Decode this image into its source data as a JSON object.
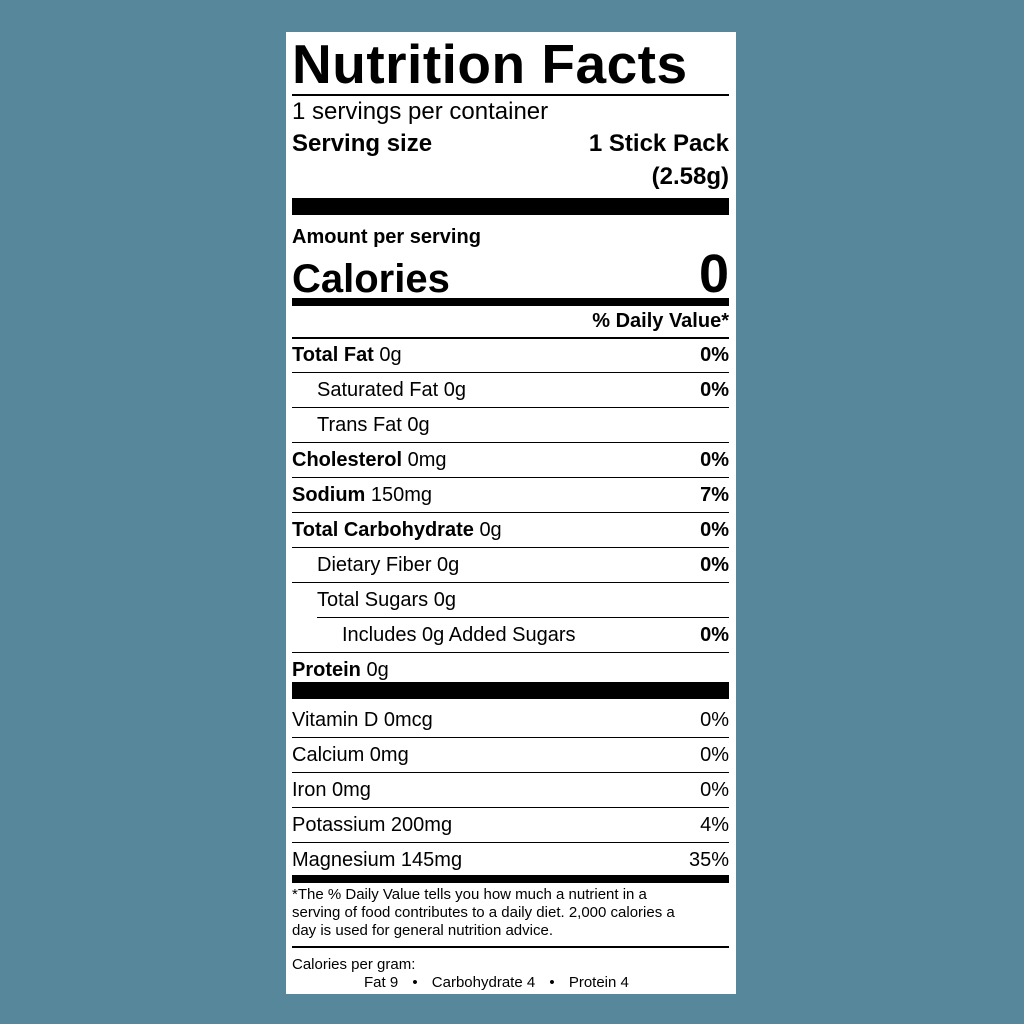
{
  "title": "Nutrition Facts",
  "servings_per_container": "1 servings per container",
  "serving_size_label": "Serving size",
  "serving_size_value": "1 Stick Pack",
  "serving_size_weight": "(2.58g)",
  "amount_per_serving": "Amount per serving",
  "calories_label": "Calories",
  "calories_value": "0",
  "daily_value_header": "% Daily Value*",
  "nutrients": [
    {
      "name": "Total Fat",
      "amount": "0g",
      "dv": "0%"
    },
    {
      "name": "Saturated Fat",
      "amount": "0g",
      "dv": "0%"
    },
    {
      "name": "Trans Fat",
      "amount": "0g",
      "dv": ""
    },
    {
      "name": "Cholesterol",
      "amount": "0mg",
      "dv": "0%"
    },
    {
      "name": "Sodium",
      "amount": "150mg",
      "dv": "7%"
    },
    {
      "name": "Total Carbohydrate",
      "amount": "0g",
      "dv": "0%"
    },
    {
      "name": "Dietary Fiber",
      "amount": "0g",
      "dv": "0%"
    },
    {
      "name": "Total Sugars",
      "amount": "0g",
      "dv": ""
    },
    {
      "name": "Includes 0g Added Sugars",
      "amount": "",
      "dv": "0%"
    },
    {
      "name": "Protein",
      "amount": "0g",
      "dv": ""
    }
  ],
  "vitamins": [
    {
      "name": "Vitamin D 0mcg",
      "dv": "0%"
    },
    {
      "name": "Calcium 0mg",
      "dv": "0%"
    },
    {
      "name": "Iron 0mg",
      "dv": "0%"
    },
    {
      "name": "Potassium 200mg",
      "dv": "4%"
    },
    {
      "name": "Magnesium 145mg",
      "dv": "35%"
    }
  ],
  "footnote": [
    "*The % Daily Value tells you how much a nutrient in a",
    "serving of food contributes to a daily diet. 2,000 calories a",
    "day is used for general nutrition advice."
  ],
  "calories_per_gram_label": "Calories per gram:",
  "calories_per_gram": {
    "fat": "Fat 9",
    "carbohydrate": "Carbohydrate 4",
    "protein": "Protein 4",
    "separator": "•"
  }
}
